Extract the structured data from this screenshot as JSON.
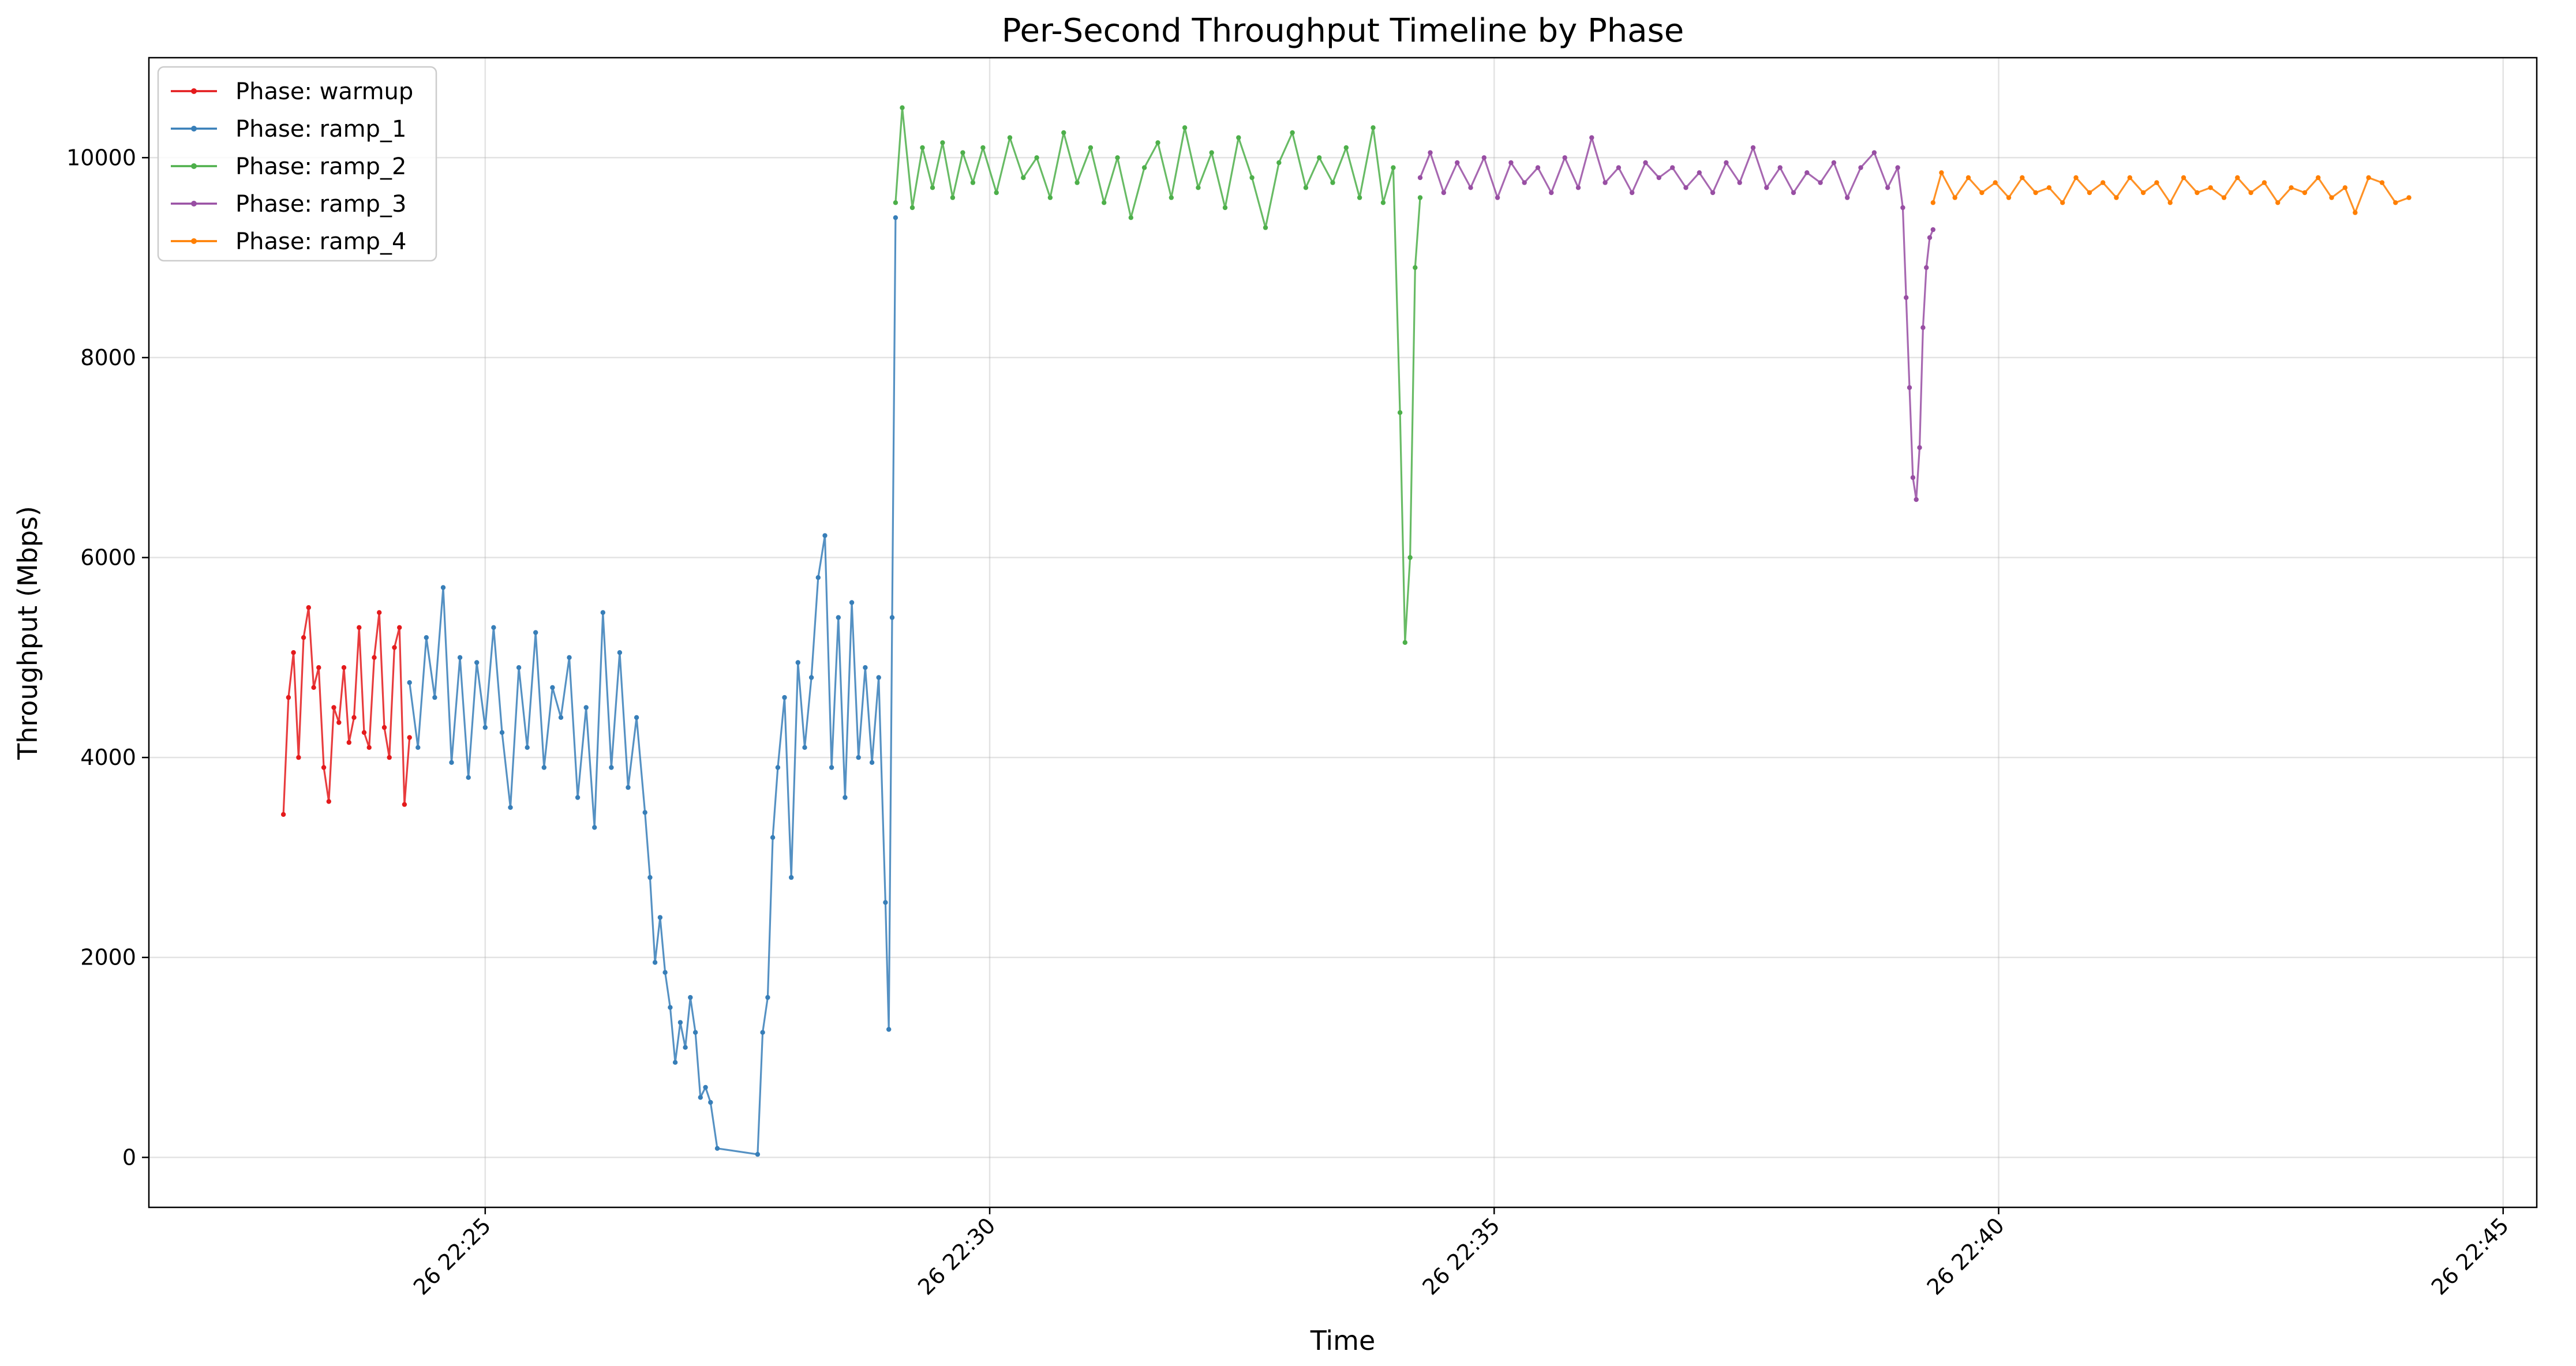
{
  "chart_data": {
    "type": "line",
    "title": "Per-Second Throughput Timeline by Phase",
    "xlabel": "Time",
    "ylabel": "Throughput (Mbps)",
    "xlim": [
      "26 22:21:40",
      "26 22:45:20"
    ],
    "ylim": [
      -500,
      11000
    ],
    "x_ticks": [
      "26 22:25",
      "26 22:30",
      "26 22:35",
      "26 22:40",
      "26 22:45"
    ],
    "y_ticks": [
      0,
      2000,
      4000,
      6000,
      8000,
      10000
    ],
    "grid": true,
    "legend_position": "top-left",
    "x_format": "DD HH:MM:SS",
    "series": [
      {
        "name": "Phase: warmup",
        "color": "#e41a1c",
        "points": [
          [
            "26 22:23:00",
            3430
          ],
          [
            "26 22:23:03",
            4600
          ],
          [
            "26 22:23:06",
            5050
          ],
          [
            "26 22:23:09",
            4000
          ],
          [
            "26 22:23:12",
            5200
          ],
          [
            "26 22:23:15",
            5500
          ],
          [
            "26 22:23:18",
            4700
          ],
          [
            "26 22:23:21",
            4900
          ],
          [
            "26 22:23:24",
            3900
          ],
          [
            "26 22:23:27",
            3560
          ],
          [
            "26 22:23:30",
            4500
          ],
          [
            "26 22:23:33",
            4350
          ],
          [
            "26 22:23:36",
            4900
          ],
          [
            "26 22:23:39",
            4150
          ],
          [
            "26 22:23:42",
            4400
          ],
          [
            "26 22:23:45",
            5300
          ],
          [
            "26 22:23:48",
            4250
          ],
          [
            "26 22:23:51",
            4100
          ],
          [
            "26 22:23:54",
            5000
          ],
          [
            "26 22:23:57",
            5450
          ],
          [
            "26 22:24:00",
            4300
          ],
          [
            "26 22:24:03",
            4000
          ],
          [
            "26 22:24:06",
            5100
          ],
          [
            "26 22:24:09",
            5300
          ],
          [
            "26 22:24:12",
            3530
          ],
          [
            "26 22:24:15",
            4200
          ]
        ]
      },
      {
        "name": "Phase: ramp_1",
        "color": "#377eb8",
        "points": [
          [
            "26 22:24:15",
            4750
          ],
          [
            "26 22:24:20",
            4100
          ],
          [
            "26 22:24:25",
            5200
          ],
          [
            "26 22:24:30",
            4600
          ],
          [
            "26 22:24:35",
            5700
          ],
          [
            "26 22:24:40",
            3950
          ],
          [
            "26 22:24:45",
            5000
          ],
          [
            "26 22:24:50",
            3800
          ],
          [
            "26 22:24:55",
            4950
          ],
          [
            "26 22:25:00",
            4300
          ],
          [
            "26 22:25:05",
            5300
          ],
          [
            "26 22:25:10",
            4250
          ],
          [
            "26 22:25:15",
            3500
          ],
          [
            "26 22:25:20",
            4900
          ],
          [
            "26 22:25:25",
            4100
          ],
          [
            "26 22:25:30",
            5250
          ],
          [
            "26 22:25:35",
            3900
          ],
          [
            "26 22:25:40",
            4700
          ],
          [
            "26 22:25:45",
            4400
          ],
          [
            "26 22:25:50",
            5000
          ],
          [
            "26 22:25:55",
            3600
          ],
          [
            "26 22:26:00",
            4500
          ],
          [
            "26 22:26:05",
            3300
          ],
          [
            "26 22:26:10",
            5450
          ],
          [
            "26 22:26:15",
            3900
          ],
          [
            "26 22:26:20",
            5050
          ],
          [
            "26 22:26:25",
            3700
          ],
          [
            "26 22:26:30",
            4400
          ],
          [
            "26 22:26:35",
            3450
          ],
          [
            "26 22:26:38",
            2800
          ],
          [
            "26 22:26:41",
            1950
          ],
          [
            "26 22:26:44",
            2400
          ],
          [
            "26 22:26:47",
            1850
          ],
          [
            "26 22:26:50",
            1500
          ],
          [
            "26 22:26:53",
            950
          ],
          [
            "26 22:26:56",
            1350
          ],
          [
            "26 22:26:59",
            1100
          ],
          [
            "26 22:27:02",
            1600
          ],
          [
            "26 22:27:05",
            1250
          ],
          [
            "26 22:27:08",
            600
          ],
          [
            "26 22:27:11",
            700
          ],
          [
            "26 22:27:14",
            550
          ],
          [
            "26 22:27:18",
            90
          ],
          [
            "26 22:27:42",
            30
          ],
          [
            "26 22:27:45",
            1250
          ],
          [
            "26 22:27:48",
            1600
          ],
          [
            "26 22:27:51",
            3200
          ],
          [
            "26 22:27:54",
            3900
          ],
          [
            "26 22:27:58",
            4600
          ],
          [
            "26 22:28:02",
            2800
          ],
          [
            "26 22:28:06",
            4950
          ],
          [
            "26 22:28:10",
            4100
          ],
          [
            "26 22:28:14",
            4800
          ],
          [
            "26 22:28:18",
            5800
          ],
          [
            "26 22:28:22",
            6220
          ],
          [
            "26 22:28:26",
            3900
          ],
          [
            "26 22:28:30",
            5400
          ],
          [
            "26 22:28:34",
            3600
          ],
          [
            "26 22:28:38",
            5550
          ],
          [
            "26 22:28:42",
            4000
          ],
          [
            "26 22:28:46",
            4900
          ],
          [
            "26 22:28:50",
            3950
          ],
          [
            "26 22:28:54",
            4800
          ],
          [
            "26 22:28:58",
            2550
          ],
          [
            "26 22:29:00",
            1280
          ],
          [
            "26 22:29:02",
            5400
          ],
          [
            "26 22:29:04",
            9400
          ]
        ]
      },
      {
        "name": "Phase: ramp_2",
        "color": "#4daf4a",
        "points": [
          [
            "26 22:29:04",
            9550
          ],
          [
            "26 22:29:08",
            10500
          ],
          [
            "26 22:29:14",
            9500
          ],
          [
            "26 22:29:20",
            10100
          ],
          [
            "26 22:29:26",
            9700
          ],
          [
            "26 22:29:32",
            10150
          ],
          [
            "26 22:29:38",
            9600
          ],
          [
            "26 22:29:44",
            10050
          ],
          [
            "26 22:29:50",
            9750
          ],
          [
            "26 22:29:56",
            10100
          ],
          [
            "26 22:30:04",
            9650
          ],
          [
            "26 22:30:12",
            10200
          ],
          [
            "26 22:30:20",
            9800
          ],
          [
            "26 22:30:28",
            10000
          ],
          [
            "26 22:30:36",
            9600
          ],
          [
            "26 22:30:44",
            10250
          ],
          [
            "26 22:30:52",
            9750
          ],
          [
            "26 22:31:00",
            10100
          ],
          [
            "26 22:31:08",
            9550
          ],
          [
            "26 22:31:16",
            10000
          ],
          [
            "26 22:31:24",
            9400
          ],
          [
            "26 22:31:32",
            9900
          ],
          [
            "26 22:31:40",
            10150
          ],
          [
            "26 22:31:48",
            9600
          ],
          [
            "26 22:31:56",
            10300
          ],
          [
            "26 22:32:04",
            9700
          ],
          [
            "26 22:32:12",
            10050
          ],
          [
            "26 22:32:20",
            9500
          ],
          [
            "26 22:32:28",
            10200
          ],
          [
            "26 22:32:36",
            9800
          ],
          [
            "26 22:32:44",
            9300
          ],
          [
            "26 22:32:52",
            9950
          ],
          [
            "26 22:33:00",
            10250
          ],
          [
            "26 22:33:08",
            9700
          ],
          [
            "26 22:33:16",
            10000
          ],
          [
            "26 22:33:24",
            9750
          ],
          [
            "26 22:33:32",
            10100
          ],
          [
            "26 22:33:40",
            9600
          ],
          [
            "26 22:33:48",
            10300
          ],
          [
            "26 22:33:54",
            9550
          ],
          [
            "26 22:34:00",
            9900
          ],
          [
            "26 22:34:04",
            7450
          ],
          [
            "26 22:34:07",
            5150
          ],
          [
            "26 22:34:10",
            6000
          ],
          [
            "26 22:34:13",
            8900
          ],
          [
            "26 22:34:16",
            9600
          ]
        ]
      },
      {
        "name": "Phase: ramp_3",
        "color": "#984ea3",
        "points": [
          [
            "26 22:34:16",
            9800
          ],
          [
            "26 22:34:22",
            10050
          ],
          [
            "26 22:34:30",
            9650
          ],
          [
            "26 22:34:38",
            9950
          ],
          [
            "26 22:34:46",
            9700
          ],
          [
            "26 22:34:54",
            10000
          ],
          [
            "26 22:35:02",
            9600
          ],
          [
            "26 22:35:10",
            9950
          ],
          [
            "26 22:35:18",
            9750
          ],
          [
            "26 22:35:26",
            9900
          ],
          [
            "26 22:35:34",
            9650
          ],
          [
            "26 22:35:42",
            10000
          ],
          [
            "26 22:35:50",
            9700
          ],
          [
            "26 22:35:58",
            10200
          ],
          [
            "26 22:36:06",
            9750
          ],
          [
            "26 22:36:14",
            9900
          ],
          [
            "26 22:36:22",
            9650
          ],
          [
            "26 22:36:30",
            9950
          ],
          [
            "26 22:36:38",
            9800
          ],
          [
            "26 22:36:46",
            9900
          ],
          [
            "26 22:36:54",
            9700
          ],
          [
            "26 22:37:02",
            9850
          ],
          [
            "26 22:37:10",
            9650
          ],
          [
            "26 22:37:18",
            9950
          ],
          [
            "26 22:37:26",
            9750
          ],
          [
            "26 22:37:34",
            10100
          ],
          [
            "26 22:37:42",
            9700
          ],
          [
            "26 22:37:50",
            9900
          ],
          [
            "26 22:37:58",
            9650
          ],
          [
            "26 22:38:06",
            9850
          ],
          [
            "26 22:38:14",
            9750
          ],
          [
            "26 22:38:22",
            9950
          ],
          [
            "26 22:38:30",
            9600
          ],
          [
            "26 22:38:38",
            9900
          ],
          [
            "26 22:38:46",
            10050
          ],
          [
            "26 22:38:54",
            9700
          ],
          [
            "26 22:39:00",
            9900
          ],
          [
            "26 22:39:03",
            9500
          ],
          [
            "26 22:39:05",
            8600
          ],
          [
            "26 22:39:07",
            7700
          ],
          [
            "26 22:39:09",
            6800
          ],
          [
            "26 22:39:11",
            6580
          ],
          [
            "26 22:39:13",
            7100
          ],
          [
            "26 22:39:15",
            8300
          ],
          [
            "26 22:39:17",
            8900
          ],
          [
            "26 22:39:19",
            9200
          ],
          [
            "26 22:39:21",
            9280
          ]
        ]
      },
      {
        "name": "Phase: ramp_4",
        "color": "#ff7f00",
        "points": [
          [
            "26 22:39:21",
            9550
          ],
          [
            "26 22:39:26",
            9850
          ],
          [
            "26 22:39:34",
            9600
          ],
          [
            "26 22:39:42",
            9800
          ],
          [
            "26 22:39:50",
            9650
          ],
          [
            "26 22:39:58",
            9750
          ],
          [
            "26 22:40:06",
            9600
          ],
          [
            "26 22:40:14",
            9800
          ],
          [
            "26 22:40:22",
            9650
          ],
          [
            "26 22:40:30",
            9700
          ],
          [
            "26 22:40:38",
            9550
          ],
          [
            "26 22:40:46",
            9800
          ],
          [
            "26 22:40:54",
            9650
          ],
          [
            "26 22:41:02",
            9750
          ],
          [
            "26 22:41:10",
            9600
          ],
          [
            "26 22:41:18",
            9800
          ],
          [
            "26 22:41:26",
            9650
          ],
          [
            "26 22:41:34",
            9750
          ],
          [
            "26 22:41:42",
            9550
          ],
          [
            "26 22:41:50",
            9800
          ],
          [
            "26 22:41:58",
            9650
          ],
          [
            "26 22:42:06",
            9700
          ],
          [
            "26 22:42:14",
            9600
          ],
          [
            "26 22:42:22",
            9800
          ],
          [
            "26 22:42:30",
            9650
          ],
          [
            "26 22:42:38",
            9750
          ],
          [
            "26 22:42:46",
            9550
          ],
          [
            "26 22:42:54",
            9700
          ],
          [
            "26 22:43:02",
            9650
          ],
          [
            "26 22:43:10",
            9800
          ],
          [
            "26 22:43:18",
            9600
          ],
          [
            "26 22:43:26",
            9700
          ],
          [
            "26 22:43:32",
            9450
          ],
          [
            "26 22:43:40",
            9800
          ],
          [
            "26 22:43:48",
            9750
          ],
          [
            "26 22:43:56",
            9550
          ],
          [
            "26 22:44:04",
            9600
          ]
        ]
      }
    ]
  }
}
